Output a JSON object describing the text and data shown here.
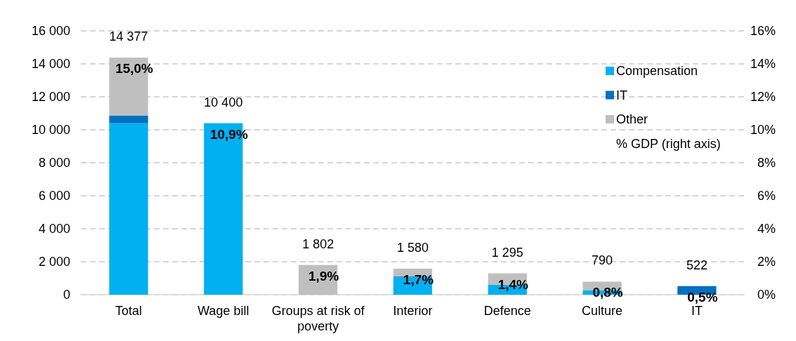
{
  "chart_data": {
    "type": "bar",
    "stacked": true,
    "categories": [
      "Total",
      "Wage bill",
      "Groups at risk of poverty",
      "Interior",
      "Defence",
      "Culture",
      "IT"
    ],
    "series": [
      {
        "name": "Compensation",
        "color": "#00b0f0",
        "values": [
          10400,
          10400,
          0,
          1050,
          600,
          255,
          0
        ]
      },
      {
        "name": "IT",
        "color": "#0070c0",
        "values": [
          470,
          0,
          0,
          50,
          0,
          0,
          522
        ]
      },
      {
        "name": "Other",
        "color": "#bfbfbf",
        "values": [
          3507,
          0,
          1802,
          480,
          695,
          535,
          0
        ]
      }
    ],
    "totals": [
      "14 377",
      "10 400",
      "1 802",
      "1 580",
      "1 295",
      "790",
      "522"
    ],
    "annotations": [
      "% GDP (right axis)",
      "15,0%",
      "10,9%",
      "1,9%",
      "1,7%",
      "1,4%",
      "0,8%",
      "0,5%"
    ],
    "ylim": [
      0,
      16000
    ],
    "yticks": [
      {
        "value": 0,
        "label": "0"
      },
      {
        "value": 2000,
        "label": "2 000"
      },
      {
        "value": 4000,
        "label": "4 000"
      },
      {
        "value": 6000,
        "label": "6 000"
      },
      {
        "value": 8000,
        "label": "8 000"
      },
      {
        "value": 10000,
        "label": "10 000"
      },
      {
        "value": 12000,
        "label": "12 000"
      },
      {
        "value": 14000,
        "label": "14 000"
      },
      {
        "value": 16000,
        "label": "16 000"
      }
    ],
    "y2lim": [
      0,
      16
    ],
    "y2ticks": [
      {
        "value": 0,
        "label": "0%"
      },
      {
        "value": 2,
        "label": "2%"
      },
      {
        "value": 4,
        "label": "4%"
      },
      {
        "value": 6,
        "label": "6%"
      },
      {
        "value": 8,
        "label": "8%"
      },
      {
        "value": 10,
        "label": "10%"
      },
      {
        "value": 12,
        "label": "12%"
      },
      {
        "value": 14,
        "label": "14%"
      },
      {
        "value": 16,
        "label": "16%"
      }
    ],
    "grid": "y",
    "legend": "top right"
  }
}
